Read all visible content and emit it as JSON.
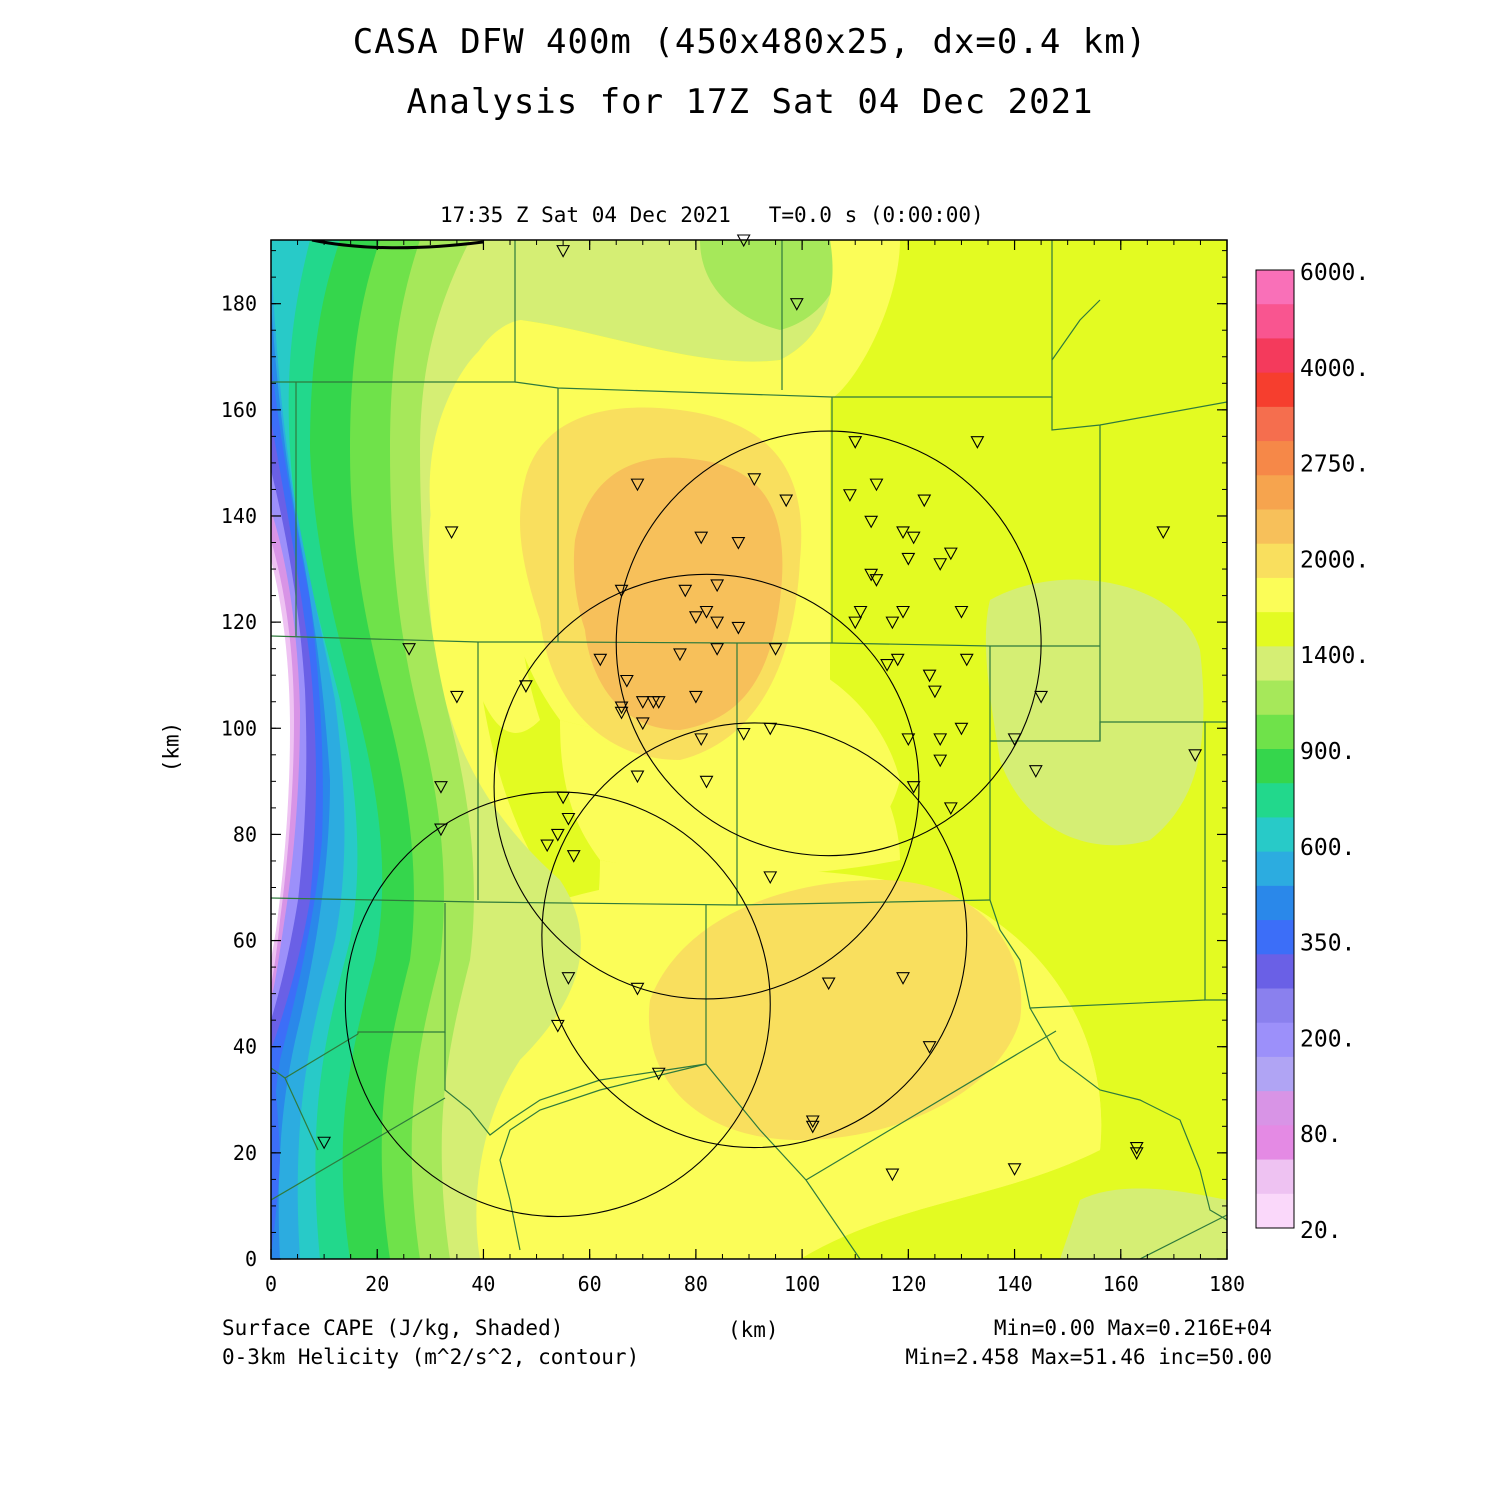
{
  "title": {
    "line1": "CASA DFW 400m (450x480x25, dx=0.4 km)",
    "line2": "Analysis for 17Z Sat 04 Dec 2021"
  },
  "valid_time": "17:35 Z Sat 04 Dec 2021   T=0.0 s (0:00:00)",
  "axes": {
    "x_label": "(km)",
    "y_label": "(km)",
    "x_range": [
      0,
      180
    ],
    "y_range": [
      0,
      192
    ],
    "x_ticks": [
      "0",
      "20",
      "40",
      "60",
      "80",
      "100",
      "120",
      "140",
      "160",
      "180"
    ],
    "y_ticks": [
      "0",
      "20",
      "40",
      "60",
      "80",
      "100",
      "120",
      "140",
      "160",
      "180"
    ]
  },
  "colorbar": {
    "labels": [
      "6000.",
      "4000.",
      "2750.",
      "2000.",
      "1400.",
      "900.",
      "600.",
      "350.",
      "200.",
      "80.",
      "20."
    ],
    "colors": [
      "#f970b8",
      "#f95590",
      "#f43a5c",
      "#f63e2e",
      "#f56e4e",
      "#f68848",
      "#f6a44e",
      "#f7c05a",
      "#f9df5e",
      "#fbfd58",
      "#e3fb22",
      "#d5ee74",
      "#a6e85a",
      "#6fe24a",
      "#35d64c",
      "#22d88c",
      "#28cac8",
      "#2cace0",
      "#2a88ea",
      "#3c6ef8",
      "#6a60e6",
      "#8a80ee",
      "#9c90fa",
      "#b0a4f4",
      "#d894e6",
      "#e48ae4",
      "#eec2f2",
      "#fad8fa"
    ]
  },
  "legend": {
    "field1": "Surface CAPE (J/kg, Shaded)",
    "field2": "0-3km Helicity (m^2/s^2, contour)",
    "stats1": "Min=0.00 Max=0.216E+04",
    "stats2": "Min=2.458 Max=51.46 inc=50.00"
  },
  "radar_rings_km": [
    {
      "cx": 105,
      "cy": 116,
      "r": 40
    },
    {
      "cx": 82,
      "cy": 89,
      "r": 40
    },
    {
      "cx": 91,
      "cy": 61,
      "r": 40
    },
    {
      "cx": 54,
      "cy": 48,
      "r": 40
    }
  ],
  "stations_km": [
    [
      55,
      190
    ],
    [
      89,
      192
    ],
    [
      99,
      180
    ],
    [
      34,
      137
    ],
    [
      69,
      146
    ],
    [
      81,
      136
    ],
    [
      88,
      135
    ],
    [
      91,
      147
    ],
    [
      97,
      143
    ],
    [
      110,
      154
    ],
    [
      133,
      154
    ],
    [
      109,
      144
    ],
    [
      114,
      146
    ],
    [
      113,
      139
    ],
    [
      123,
      143
    ],
    [
      119,
      137
    ],
    [
      121,
      136
    ],
    [
      113,
      129
    ],
    [
      114,
      128
    ],
    [
      120,
      132
    ],
    [
      126,
      131
    ],
    [
      128,
      133
    ],
    [
      66,
      126
    ],
    [
      78,
      126
    ],
    [
      84,
      127
    ],
    [
      80,
      121
    ],
    [
      82,
      122
    ],
    [
      84,
      120
    ],
    [
      88,
      119
    ],
    [
      111,
      122
    ],
    [
      110,
      120
    ],
    [
      117,
      120
    ],
    [
      119,
      122
    ],
    [
      130,
      122
    ],
    [
      168,
      137
    ],
    [
      26,
      115
    ],
    [
      62,
      113
    ],
    [
      84,
      115
    ],
    [
      77,
      114
    ],
    [
      95,
      115
    ],
    [
      116,
      112
    ],
    [
      118,
      113
    ],
    [
      124,
      110
    ],
    [
      131,
      113
    ],
    [
      35,
      106
    ],
    [
      48,
      108
    ],
    [
      67,
      109
    ],
    [
      70,
      105
    ],
    [
      72,
      105
    ],
    [
      73,
      105
    ],
    [
      80,
      106
    ],
    [
      66,
      104
    ],
    [
      66,
      103
    ],
    [
      70,
      101
    ],
    [
      81,
      98
    ],
    [
      89,
      99
    ],
    [
      94,
      100
    ],
    [
      125,
      107
    ],
    [
      120,
      98
    ],
    [
      126,
      98
    ],
    [
      130,
      100
    ],
    [
      126,
      94
    ],
    [
      140,
      98
    ],
    [
      144,
      92
    ],
    [
      145,
      106
    ],
    [
      174,
      95
    ],
    [
      69,
      91
    ],
    [
      82,
      90
    ],
    [
      121,
      89
    ],
    [
      128,
      85
    ],
    [
      32,
      89
    ],
    [
      32,
      81
    ],
    [
      55,
      87
    ],
    [
      56,
      83
    ],
    [
      52,
      78
    ],
    [
      54,
      80
    ],
    [
      57,
      76
    ],
    [
      94,
      72
    ],
    [
      56,
      53
    ],
    [
      69,
      51
    ],
    [
      105,
      52
    ],
    [
      119,
      53
    ],
    [
      54,
      44
    ],
    [
      124,
      40
    ],
    [
      73,
      35
    ],
    [
      102,
      26
    ],
    [
      102,
      25
    ],
    [
      10,
      22
    ],
    [
      117,
      16
    ],
    [
      140,
      17
    ],
    [
      163,
      20
    ],
    [
      163,
      21
    ]
  ]
}
